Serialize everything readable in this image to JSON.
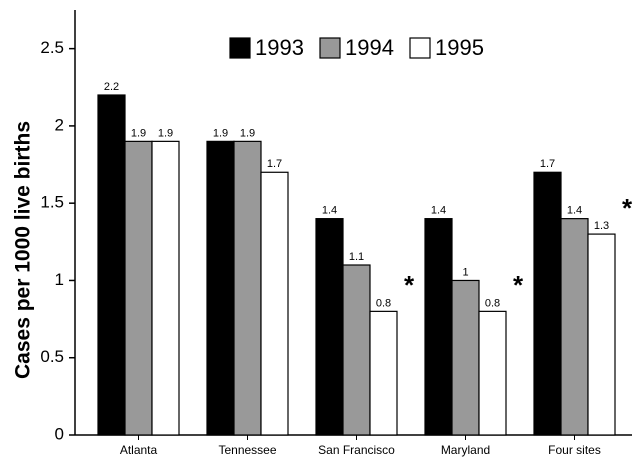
{
  "chart_data": {
    "type": "bar",
    "y_label": "Cases per 1000 live births",
    "categories": [
      "Atlanta",
      "Tennessee",
      "San Francisco",
      "Maryland",
      "Four sites"
    ],
    "series": [
      {
        "name": "1993",
        "color": "#000000",
        "values": [
          2.2,
          1.9,
          1.4,
          1.4,
          1.7
        ]
      },
      {
        "name": "1994",
        "color": "#999999",
        "values": [
          1.9,
          1.9,
          1.1,
          1.0,
          1.4
        ]
      },
      {
        "name": "1995",
        "color": "#ffffff",
        "values": [
          1.9,
          1.7,
          0.8,
          0.8,
          1.3
        ]
      }
    ],
    "annotations": [
      {
        "text": "*",
        "category": "San Francisco"
      },
      {
        "text": "*",
        "category": "Maryland"
      },
      {
        "text": "*",
        "category": "Four sites"
      }
    ],
    "ylim": [
      0,
      2.75
    ],
    "yticks": [
      0,
      0.5,
      1,
      1.5,
      2,
      2.5
    ],
    "grid": false
  }
}
